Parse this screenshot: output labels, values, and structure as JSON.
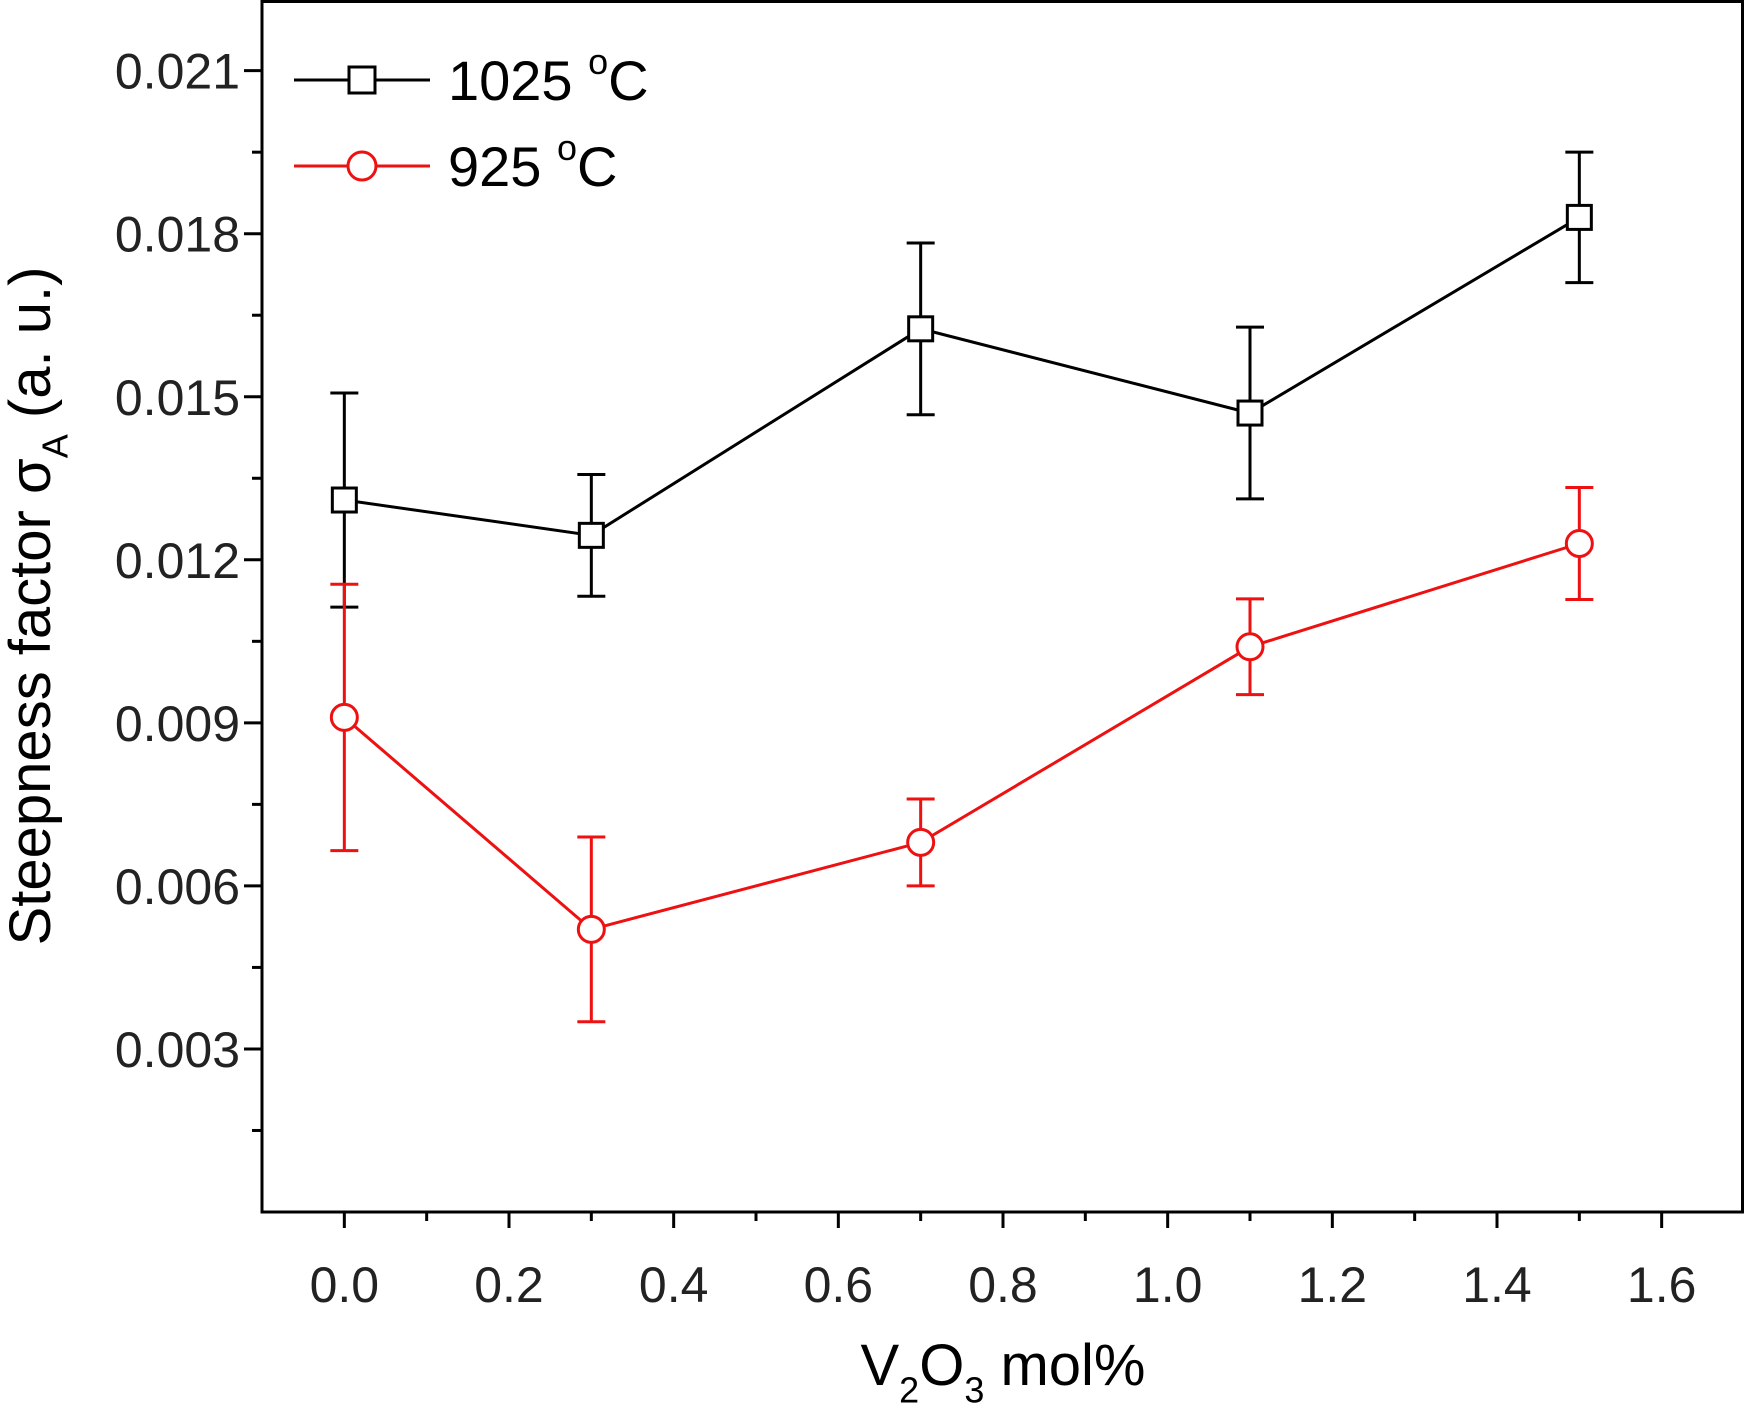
{
  "chart_data": {
    "type": "line",
    "title": "",
    "xlabel": {
      "parts": [
        {
          "text": "V",
          "shift": "none"
        },
        {
          "text": "2",
          "shift": "sub"
        },
        {
          "text": "O",
          "shift": "none"
        },
        {
          "text": "3",
          "shift": "sub"
        },
        {
          "text": " mol%",
          "shift": "none"
        }
      ]
    },
    "ylabel": {
      "parts": [
        {
          "text": "Steepness factor σ",
          "shift": "none"
        },
        {
          "text": "A",
          "shift": "sub"
        },
        {
          "text": " (a. u.)",
          "shift": "none"
        }
      ]
    },
    "xlim": [
      -0.1,
      1.7
    ],
    "ylim": [
      0.0,
      0.0223
    ],
    "x_ticks": [
      "0.0",
      "0.2",
      "0.4",
      "0.6",
      "0.8",
      "1.0",
      "1.2",
      "1.4",
      "1.6"
    ],
    "x_tick_values": [
      0.0,
      0.2,
      0.4,
      0.6,
      0.8,
      1.0,
      1.2,
      1.4,
      1.6
    ],
    "y_ticks": [
      "0.003",
      "0.006",
      "0.009",
      "0.012",
      "0.015",
      "0.018",
      "0.021"
    ],
    "y_tick_values": [
      0.003,
      0.006,
      0.009,
      0.012,
      0.015,
      0.018,
      0.021
    ],
    "legend_position": "top-left",
    "series": [
      {
        "name": "1025 °C",
        "legend_main": "1025 ",
        "legend_sup": "o",
        "legend_tail": "C",
        "marker": "square",
        "color": "#000000",
        "x": [
          0.0,
          0.3,
          0.7,
          1.1,
          1.5
        ],
        "y": [
          0.0131,
          0.01245,
          0.01625,
          0.0147,
          0.0183
        ],
        "err": [
          0.00197,
          0.00112,
          0.00158,
          0.00158,
          0.0012
        ]
      },
      {
        "name": "925 °C",
        "legend_main": "925 ",
        "legend_sup": "o",
        "legend_tail": "C",
        "marker": "circle",
        "color": "#ee1111",
        "x": [
          0.0,
          0.3,
          0.7,
          1.1,
          1.5
        ],
        "y": [
          0.0091,
          0.0052,
          0.0068,
          0.0104,
          0.0123
        ],
        "err": [
          0.00245,
          0.0017,
          0.0008,
          0.00088,
          0.00103
        ]
      }
    ]
  }
}
